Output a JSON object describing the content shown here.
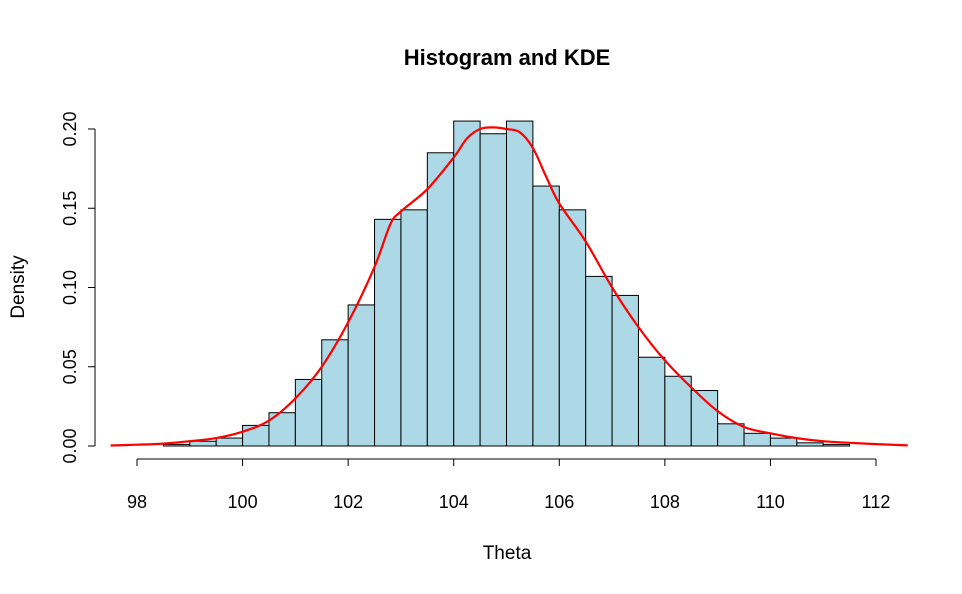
{
  "chart_data": {
    "type": "bar",
    "subtype": "histogram-with-kde",
    "title": "Histogram and KDE",
    "xlabel": "Theta",
    "ylabel": "Density",
    "xlim": [
      97.5,
      112.6
    ],
    "ylim": [
      0,
      0.2
    ],
    "x_ticks": [
      98,
      100,
      102,
      104,
      106,
      108,
      110,
      112
    ],
    "y_ticks": [
      0.0,
      0.05,
      0.1,
      0.15,
      0.2
    ],
    "y_tick_labels": [
      "0.00",
      "0.05",
      "0.10",
      "0.15",
      "0.20"
    ],
    "grid": false,
    "bin_width": 0.5,
    "bins": [
      {
        "x0": 98.5,
        "x1": 99.0,
        "density": 0.001
      },
      {
        "x0": 99.0,
        "x1": 99.5,
        "density": 0.003
      },
      {
        "x0": 99.5,
        "x1": 100.0,
        "density": 0.005
      },
      {
        "x0": 100.0,
        "x1": 100.5,
        "density": 0.013
      },
      {
        "x0": 100.5,
        "x1": 101.0,
        "density": 0.021
      },
      {
        "x0": 101.0,
        "x1": 101.5,
        "density": 0.042
      },
      {
        "x0": 101.5,
        "x1": 102.0,
        "density": 0.067
      },
      {
        "x0": 102.0,
        "x1": 102.5,
        "density": 0.089
      },
      {
        "x0": 102.5,
        "x1": 103.0,
        "density": 0.143
      },
      {
        "x0": 103.0,
        "x1": 103.5,
        "density": 0.149
      },
      {
        "x0": 103.5,
        "x1": 104.0,
        "density": 0.185
      },
      {
        "x0": 104.0,
        "x1": 104.5,
        "density": 0.205
      },
      {
        "x0": 104.5,
        "x1": 105.0,
        "density": 0.197
      },
      {
        "x0": 105.0,
        "x1": 105.5,
        "density": 0.205
      },
      {
        "x0": 105.5,
        "x1": 106.0,
        "density": 0.164
      },
      {
        "x0": 106.0,
        "x1": 106.5,
        "density": 0.149
      },
      {
        "x0": 106.5,
        "x1": 107.0,
        "density": 0.107
      },
      {
        "x0": 107.0,
        "x1": 107.5,
        "density": 0.095
      },
      {
        "x0": 107.5,
        "x1": 108.0,
        "density": 0.056
      },
      {
        "x0": 108.0,
        "x1": 108.5,
        "density": 0.044
      },
      {
        "x0": 108.5,
        "x1": 109.0,
        "density": 0.035
      },
      {
        "x0": 109.0,
        "x1": 109.5,
        "density": 0.014
      },
      {
        "x0": 109.5,
        "x1": 110.0,
        "density": 0.008
      },
      {
        "x0": 110.0,
        "x1": 110.5,
        "density": 0.005
      },
      {
        "x0": 110.5,
        "x1": 111.0,
        "density": 0.002
      },
      {
        "x0": 111.0,
        "x1": 111.5,
        "density": 0.001
      }
    ],
    "kde": {
      "x": [
        97.5,
        98.0,
        98.5,
        99.0,
        99.5,
        100.0,
        100.5,
        101.0,
        101.5,
        102.0,
        102.5,
        102.8,
        103.0,
        103.5,
        104.0,
        104.25,
        104.5,
        104.75,
        105.0,
        105.25,
        105.5,
        105.75,
        106.0,
        106.5,
        107.0,
        107.5,
        108.0,
        108.5,
        109.0,
        109.5,
        110.0,
        110.5,
        111.0,
        111.5,
        112.0,
        112.6
      ],
      "y": [
        0.0003,
        0.0008,
        0.0015,
        0.003,
        0.005,
        0.009,
        0.016,
        0.03,
        0.05,
        0.078,
        0.113,
        0.14,
        0.148,
        0.162,
        0.182,
        0.194,
        0.2,
        0.201,
        0.2,
        0.198,
        0.188,
        0.17,
        0.153,
        0.129,
        0.1,
        0.075,
        0.054,
        0.037,
        0.022,
        0.012,
        0.008,
        0.005,
        0.003,
        0.002,
        0.0012,
        0.0004
      ]
    },
    "colors": {
      "bar_fill": "#add8e6",
      "bar_stroke": "#000000",
      "kde_line": "#ff0000"
    }
  }
}
